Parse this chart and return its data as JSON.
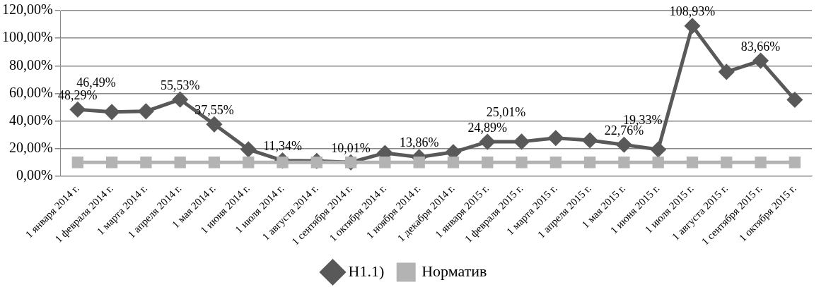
{
  "chart_data": {
    "type": "line",
    "categories": [
      "1 января 2014 г.",
      "1 февраля 2014 г.",
      "1 марта 2014 г.",
      "1 апреля 2014 г.",
      "1 мая 2014 г.",
      "1 июня 2014 г.",
      "1 июля 2014 г.",
      "1 августа 2014 г.",
      "1 сентября 2014 г.",
      "1 октября 2014 г.",
      "1 ноября 2014 г.",
      "1 декабря 2014 г.",
      "1 января 2015 г.",
      "1 февраля 2015 г.",
      "1 марта 2015 г.",
      "1 апреля 2015 г.",
      "1 мая 2015 г.",
      "1 июня 2015 г.",
      "1 июля 2015 г.",
      "1 августа 2015 г.",
      "1 сентября 2015 г.",
      "1 октября 2015 г."
    ],
    "series": [
      {
        "name": "Н1.1)",
        "color": "#595959",
        "marker": "diamond",
        "values": [
          48.29,
          46.49,
          47,
          55.53,
          37.55,
          19.4,
          11.34,
          11,
          10.01,
          16.8,
          13.86,
          17.4,
          24.89,
          25.01,
          27.6,
          26,
          22.76,
          19.33,
          108.93,
          75.6,
          83.66,
          55.4
        ],
        "value_labels": [
          "48,29%",
          "46,49%",
          null,
          "55,53%",
          "37,55%",
          null,
          "11,34%",
          null,
          "10,01%",
          null,
          "13,86%",
          null,
          "24,89%",
          "25,01%",
          null,
          null,
          "22,76%",
          "19,33%",
          "108,93%",
          null,
          "83,66%",
          null
        ]
      },
      {
        "name": "Норматив",
        "color": "#b3b3b3",
        "marker": "square",
        "values": [
          10,
          10,
          10,
          10,
          10,
          10,
          10,
          10,
          10,
          10,
          10,
          10,
          10,
          10,
          10,
          10,
          10,
          10,
          10,
          10,
          10,
          10
        ]
      }
    ],
    "ylim": [
      0,
      120
    ],
    "yticks": [
      {
        "value": 0,
        "label": "0,00%"
      },
      {
        "value": 20,
        "label": "20,00%"
      },
      {
        "value": 40,
        "label": "40,00%"
      },
      {
        "value": 60,
        "label": "60,00%"
      },
      {
        "value": 80,
        "label": "80,00%"
      },
      {
        "value": 100,
        "label": "100,00%"
      },
      {
        "value": 120,
        "label": "120,00%"
      }
    ],
    "grid": "y",
    "legend": "bottom"
  }
}
